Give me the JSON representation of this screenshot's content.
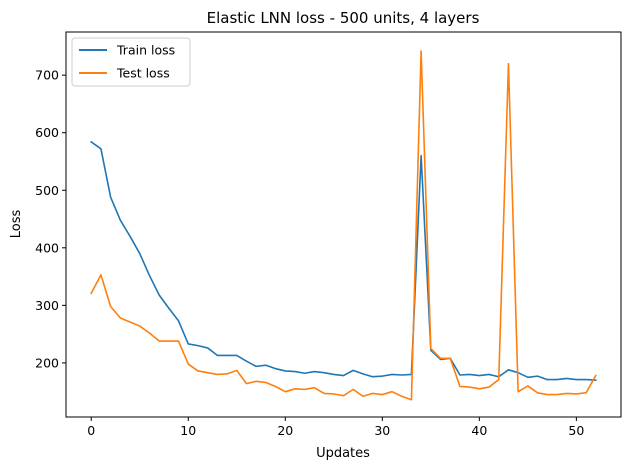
{
  "chart_data": {
    "type": "line",
    "title": "Elastic LNN loss - 500 units, 4 layers",
    "xlabel": "Updates",
    "ylabel": "Loss",
    "xlim": [
      -2.6,
      54.6
    ],
    "ylim": [
      106,
      775
    ],
    "xticks": [
      0,
      10,
      20,
      30,
      40,
      50
    ],
    "yticks": [
      200,
      300,
      400,
      500,
      600,
      700
    ],
    "grid": false,
    "legend_position": "top-left",
    "series": [
      {
        "name": "Train loss",
        "color": "#1f77b4",
        "x": [
          0,
          1,
          2,
          3,
          4,
          5,
          6,
          7,
          8,
          9,
          10,
          11,
          12,
          13,
          14,
          15,
          16,
          17,
          18,
          19,
          20,
          21,
          22,
          23,
          24,
          25,
          26,
          27,
          28,
          29,
          30,
          31,
          32,
          33,
          34,
          35,
          36,
          37,
          38,
          39,
          40,
          41,
          42,
          43,
          44,
          45,
          46,
          47,
          48,
          49,
          50,
          51,
          52
        ],
        "values": [
          584,
          572,
          488,
          448,
          420,
          390,
          352,
          318,
          295,
          273,
          233,
          230,
          226,
          213,
          213,
          213,
          203,
          194,
          196,
          190,
          186,
          185,
          182,
          185,
          183,
          180,
          178,
          187,
          181,
          176,
          177,
          180,
          179,
          180,
          560,
          222,
          206,
          208,
          179,
          180,
          178,
          180,
          176,
          188,
          183,
          175,
          177,
          171,
          171,
          173,
          171,
          171,
          170
        ]
      },
      {
        "name": "Test loss",
        "color": "#ff7f0e",
        "x": [
          0,
          1,
          2,
          3,
          4,
          5,
          6,
          7,
          8,
          9,
          10,
          11,
          12,
          13,
          14,
          15,
          16,
          17,
          18,
          19,
          20,
          21,
          22,
          23,
          24,
          25,
          26,
          27,
          28,
          29,
          30,
          31,
          32,
          33,
          34,
          35,
          36,
          37,
          38,
          39,
          40,
          41,
          42,
          43,
          44,
          45,
          46,
          47,
          48,
          49,
          50,
          51,
          52
        ],
        "values": [
          321,
          353,
          298,
          278,
          271,
          264,
          252,
          238,
          238,
          238,
          198,
          186,
          183,
          180,
          181,
          187,
          164,
          168,
          166,
          159,
          150,
          155,
          154,
          157,
          147,
          146,
          143,
          154,
          142,
          147,
          145,
          150,
          142,
          136,
          742,
          225,
          208,
          208,
          159,
          158,
          155,
          158,
          171,
          720,
          150,
          160,
          148,
          145,
          145,
          147,
          146,
          148,
          178
        ]
      }
    ]
  }
}
